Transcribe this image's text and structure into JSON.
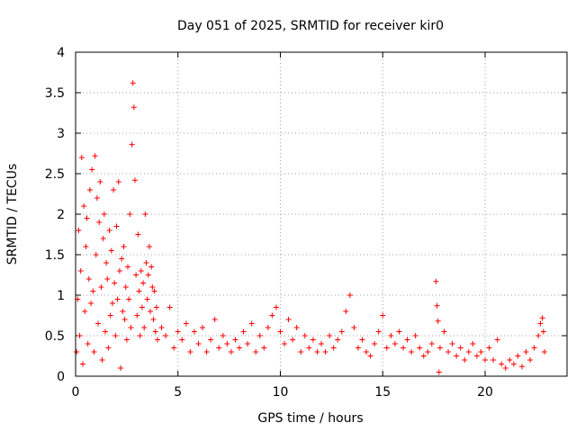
{
  "chart_data": {
    "type": "scatter",
    "title": "Day 051 of 2025, SRMTID for receiver kir0",
    "xlabel": "GPS time / hours",
    "ylabel": "SRMTID / TECUs",
    "xlim": [
      0,
      24
    ],
    "ylim": [
      0,
      4
    ],
    "xticks": [
      0,
      5,
      10,
      15,
      20
    ],
    "yticks": [
      0,
      0.5,
      1,
      1.5,
      2,
      2.5,
      3,
      3.5,
      4
    ],
    "xtick_labels": [
      "0",
      "5",
      "10",
      "15",
      "20"
    ],
    "ytick_labels": [
      "0",
      "0.5",
      "1",
      "1.5",
      "2",
      "2.5",
      "3",
      "3.5",
      "4"
    ],
    "grid": true,
    "marker": "+",
    "color": "#ff0000",
    "series": [
      {
        "name": "SRMTID",
        "points": [
          [
            0.05,
            0.3
          ],
          [
            0.1,
            0.95
          ],
          [
            0.15,
            1.8
          ],
          [
            0.2,
            0.5
          ],
          [
            0.25,
            1.3
          ],
          [
            0.3,
            2.7
          ],
          [
            0.35,
            0.15
          ],
          [
            0.4,
            2.1
          ],
          [
            0.45,
            0.8
          ],
          [
            0.5,
            1.6
          ],
          [
            0.55,
            1.95
          ],
          [
            0.6,
            0.4
          ],
          [
            0.65,
            1.2
          ],
          [
            0.7,
            2.3
          ],
          [
            0.75,
            0.9
          ],
          [
            0.8,
            2.55
          ],
          [
            0.85,
            1.05
          ],
          [
            0.9,
            0.3
          ],
          [
            0.95,
            2.72
          ],
          [
            1.0,
            1.5
          ],
          [
            1.05,
            2.2
          ],
          [
            1.1,
            0.65
          ],
          [
            1.15,
            1.9
          ],
          [
            1.2,
            2.4
          ],
          [
            1.25,
            1.1
          ],
          [
            1.3,
            0.2
          ],
          [
            1.35,
            1.7
          ],
          [
            1.4,
            2.0
          ],
          [
            1.45,
            0.55
          ],
          [
            1.5,
            1.4
          ],
          [
            1.55,
            1.2
          ],
          [
            1.6,
            0.35
          ],
          [
            1.65,
            1.8
          ],
          [
            1.7,
            0.75
          ],
          [
            1.75,
            1.55
          ],
          [
            1.8,
            0.9
          ],
          [
            1.85,
            2.3
          ],
          [
            1.9,
            1.15
          ],
          [
            1.95,
            0.5
          ],
          [
            2.0,
            1.85
          ],
          [
            2.05,
            0.95
          ],
          [
            2.1,
            2.4
          ],
          [
            2.15,
            1.3
          ],
          [
            2.2,
            0.1
          ],
          [
            2.25,
            1.45
          ],
          [
            2.3,
            0.8
          ],
          [
            2.35,
            1.6
          ],
          [
            2.4,
            0.7
          ],
          [
            2.45,
            1.1
          ],
          [
            2.5,
            0.45
          ],
          [
            2.55,
            1.35
          ],
          [
            2.6,
            0.95
          ],
          [
            2.65,
            2.0
          ],
          [
            2.7,
            0.6
          ],
          [
            2.75,
            2.86
          ],
          [
            2.8,
            3.62
          ],
          [
            2.85,
            3.32
          ],
          [
            2.9,
            2.42
          ],
          [
            2.95,
            1.25
          ],
          [
            3.0,
            0.75
          ],
          [
            3.05,
            1.75
          ],
          [
            3.1,
            1.05
          ],
          [
            3.15,
            0.5
          ],
          [
            3.2,
            1.3
          ],
          [
            3.25,
            0.85
          ],
          [
            3.3,
            1.15
          ],
          [
            3.35,
            0.6
          ],
          [
            3.4,
            2.0
          ],
          [
            3.45,
            1.4
          ],
          [
            3.5,
            0.95
          ],
          [
            3.55,
            1.25
          ],
          [
            3.6,
            1.6
          ],
          [
            3.65,
            0.8
          ],
          [
            3.7,
            1.35
          ],
          [
            3.75,
            1.1
          ],
          [
            3.8,
            0.7
          ],
          [
            3.85,
            1.05
          ],
          [
            3.9,
            0.55
          ],
          [
            3.95,
            0.85
          ],
          [
            4.0,
            0.45
          ],
          [
            4.2,
            0.6
          ],
          [
            4.4,
            0.5
          ],
          [
            4.6,
            0.85
          ],
          [
            4.8,
            0.35
          ],
          [
            5.0,
            0.55
          ],
          [
            5.2,
            0.45
          ],
          [
            5.4,
            0.65
          ],
          [
            5.6,
            0.3
          ],
          [
            5.8,
            0.55
          ],
          [
            6.0,
            0.4
          ],
          [
            6.2,
            0.6
          ],
          [
            6.4,
            0.3
          ],
          [
            6.6,
            0.45
          ],
          [
            6.8,
            0.7
          ],
          [
            7.0,
            0.35
          ],
          [
            7.2,
            0.5
          ],
          [
            7.4,
            0.4
          ],
          [
            7.6,
            0.3
          ],
          [
            7.8,
            0.45
          ],
          [
            8.0,
            0.35
          ],
          [
            8.2,
            0.55
          ],
          [
            8.4,
            0.4
          ],
          [
            8.6,
            0.65
          ],
          [
            8.8,
            0.3
          ],
          [
            9.0,
            0.5
          ],
          [
            9.2,
            0.35
          ],
          [
            9.4,
            0.6
          ],
          [
            9.6,
            0.75
          ],
          [
            9.8,
            0.85
          ],
          [
            10.0,
            0.55
          ],
          [
            10.2,
            0.4
          ],
          [
            10.4,
            0.7
          ],
          [
            10.6,
            0.45
          ],
          [
            10.8,
            0.6
          ],
          [
            11.0,
            0.3
          ],
          [
            11.2,
            0.5
          ],
          [
            11.4,
            0.35
          ],
          [
            11.6,
            0.45
          ],
          [
            11.8,
            0.3
          ],
          [
            12.0,
            0.4
          ],
          [
            12.2,
            0.3
          ],
          [
            12.4,
            0.5
          ],
          [
            12.6,
            0.35
          ],
          [
            12.8,
            0.45
          ],
          [
            13.0,
            0.55
          ],
          [
            13.2,
            0.8
          ],
          [
            13.4,
            1.0
          ],
          [
            13.6,
            0.6
          ],
          [
            13.8,
            0.35
          ],
          [
            14.0,
            0.45
          ],
          [
            14.2,
            0.3
          ],
          [
            14.4,
            0.25
          ],
          [
            14.6,
            0.4
          ],
          [
            14.8,
            0.55
          ],
          [
            15.0,
            0.75
          ],
          [
            15.2,
            0.35
          ],
          [
            15.4,
            0.5
          ],
          [
            15.6,
            0.4
          ],
          [
            15.8,
            0.55
          ],
          [
            16.0,
            0.35
          ],
          [
            16.2,
            0.45
          ],
          [
            16.4,
            0.3
          ],
          [
            16.6,
            0.5
          ],
          [
            16.8,
            0.35
          ],
          [
            17.0,
            0.25
          ],
          [
            17.2,
            0.3
          ],
          [
            17.4,
            0.4
          ],
          [
            17.6,
            1.17
          ],
          [
            17.65,
            0.87
          ],
          [
            17.7,
            0.68
          ],
          [
            17.75,
            0.05
          ],
          [
            17.8,
            0.35
          ],
          [
            18.0,
            0.55
          ],
          [
            18.2,
            0.3
          ],
          [
            18.4,
            0.4
          ],
          [
            18.6,
            0.25
          ],
          [
            18.8,
            0.35
          ],
          [
            19.0,
            0.2
          ],
          [
            19.2,
            0.3
          ],
          [
            19.4,
            0.4
          ],
          [
            19.6,
            0.25
          ],
          [
            19.8,
            0.3
          ],
          [
            20.0,
            0.2
          ],
          [
            20.2,
            0.35
          ],
          [
            20.4,
            0.2
          ],
          [
            20.6,
            0.45
          ],
          [
            20.8,
            0.15
          ],
          [
            21.0,
            0.1
          ],
          [
            21.2,
            0.2
          ],
          [
            21.4,
            0.15
          ],
          [
            21.6,
            0.25
          ],
          [
            21.8,
            0.12
          ],
          [
            22.0,
            0.3
          ],
          [
            22.2,
            0.2
          ],
          [
            22.4,
            0.35
          ],
          [
            22.6,
            0.5
          ],
          [
            22.7,
            0.65
          ],
          [
            22.8,
            0.72
          ],
          [
            22.85,
            0.55
          ],
          [
            22.9,
            0.3
          ]
        ]
      }
    ]
  }
}
